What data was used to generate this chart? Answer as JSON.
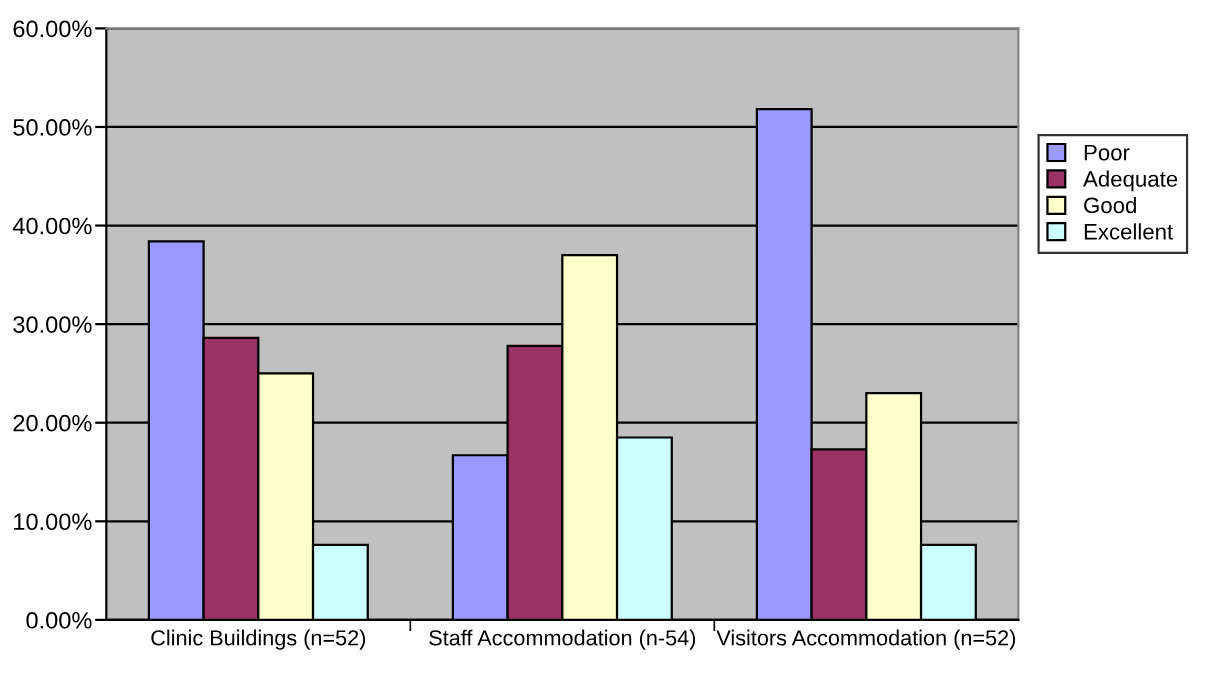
{
  "chart_data": {
    "type": "bar",
    "categories": [
      "Clinic Buildings (n=52)",
      "Staff Accommodation (n-54)",
      "Visitors Accommodation (n=52)"
    ],
    "series": [
      {
        "name": "Poor",
        "color": "#9999ff",
        "values": [
          38.4,
          16.7,
          51.8
        ]
      },
      {
        "name": "Adequate",
        "color": "#993366",
        "values": [
          28.6,
          27.8,
          17.3
        ]
      },
      {
        "name": "Good",
        "color": "#ffffcc",
        "values": [
          25.0,
          37.0,
          23.0
        ]
      },
      {
        "name": "Excellent",
        "color": "#ccffff",
        "values": [
          7.6,
          18.5,
          7.6
        ]
      }
    ],
    "ylim": [
      0,
      60
    ],
    "yticks": [
      {
        "value": 0,
        "label": "0.00%"
      },
      {
        "value": 10,
        "label": "10.00%"
      },
      {
        "value": 20,
        "label": "20.00%"
      },
      {
        "value": 30,
        "label": "30.00%"
      },
      {
        "value": 40,
        "label": "40.00%"
      },
      {
        "value": 50,
        "label": "50.00%"
      },
      {
        "value": 60,
        "label": "60.00%"
      }
    ],
    "grid": "y",
    "legend": "right"
  }
}
